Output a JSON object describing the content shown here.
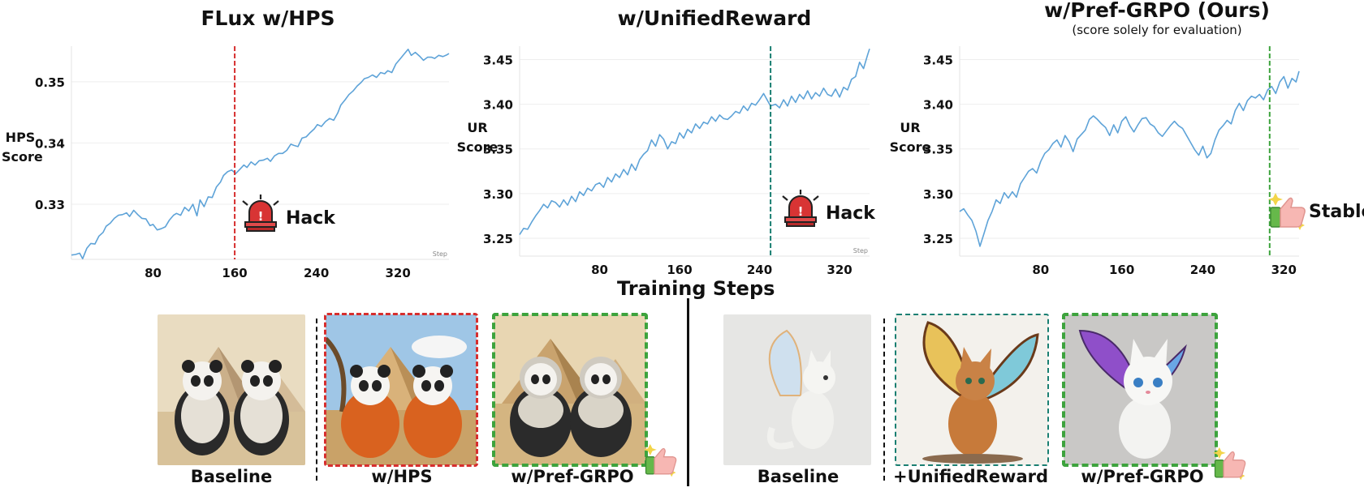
{
  "titles": {
    "left": "FLux w/HPS",
    "middle": "w/UnifiedReward",
    "right": "w/Pref-GRPO",
    "right_bold": "(Ours)",
    "right_sub": "(score solely for evaluation)"
  },
  "xlabel": "Training Steps",
  "annotations": {
    "hack": "Hack",
    "stable": "Stable"
  },
  "captions": {
    "left_baseline": "Baseline",
    "left_hps": "w/HPS",
    "left_pref": "w/Pref-GRPO",
    "right_baseline": "Baseline",
    "right_unified": "+UnifiedReward",
    "right_pref": "w/Pref-GRPO"
  },
  "colors": {
    "line": "#5ea3d8",
    "hack_red": "#d62e2e",
    "hack_teal": "#1a7f72",
    "stable_green": "#3da33d"
  },
  "icons": [
    "alarm-siren-icon",
    "thumbs-up-icon"
  ],
  "chart_data": [
    {
      "type": "line",
      "ylabel": "HPS Score",
      "ylabel_lines": [
        "HPS",
        "Score"
      ],
      "xlim": [
        0,
        370
      ],
      "ylim": [
        0.321,
        0.3558
      ],
      "xticks": [
        80,
        160,
        240,
        320
      ],
      "yticks": [
        0.33,
        0.34,
        0.35
      ],
      "ytick_labels": [
        "0.33",
        "0.34",
        "0.35"
      ],
      "corner_label": "Step",
      "marker_x": 160,
      "x": [
        0,
        4,
        8,
        11,
        15,
        19,
        23,
        27,
        31,
        34,
        38,
        42,
        46,
        50,
        54,
        57,
        61,
        65,
        69,
        73,
        77,
        80,
        84,
        88,
        92,
        96,
        100,
        103,
        107,
        111,
        115,
        119,
        123,
        126,
        130,
        134,
        138,
        142,
        146,
        149,
        153,
        157,
        161,
        165,
        169,
        172,
        176,
        180,
        184,
        188,
        192,
        195,
        199,
        203,
        207,
        211,
        215,
        218,
        222,
        226,
        230,
        234,
        238,
        241,
        245,
        249,
        253,
        257,
        261,
        264,
        268,
        272,
        276,
        280,
        284,
        287,
        291,
        295,
        299,
        303,
        307,
        310,
        314,
        318,
        322,
        326,
        330,
        333,
        337,
        341,
        345,
        349,
        353,
        356,
        360,
        364,
        368,
        370
      ],
      "y": [
        0.3217,
        0.3218,
        0.322,
        0.3211,
        0.3228,
        0.3236,
        0.3235,
        0.3248,
        0.3254,
        0.3264,
        0.3269,
        0.3277,
        0.3282,
        0.3283,
        0.3286,
        0.328,
        0.329,
        0.3283,
        0.3277,
        0.3276,
        0.3265,
        0.3267,
        0.3258,
        0.326,
        0.3263,
        0.3274,
        0.3282,
        0.3285,
        0.3282,
        0.3295,
        0.3289,
        0.33,
        0.3281,
        0.3307,
        0.3296,
        0.3312,
        0.3311,
        0.3328,
        0.3336,
        0.3347,
        0.3353,
        0.3356,
        0.335,
        0.3357,
        0.3364,
        0.336,
        0.3369,
        0.3364,
        0.3371,
        0.3372,
        0.3375,
        0.337,
        0.3379,
        0.3383,
        0.3383,
        0.3388,
        0.3398,
        0.3396,
        0.3394,
        0.3408,
        0.341,
        0.3417,
        0.3423,
        0.343,
        0.3427,
        0.3435,
        0.344,
        0.3437,
        0.3449,
        0.3462,
        0.347,
        0.3479,
        0.3485,
        0.3493,
        0.3499,
        0.3505,
        0.3507,
        0.3511,
        0.3507,
        0.3515,
        0.3513,
        0.3518,
        0.3515,
        0.3529,
        0.3537,
        0.3545,
        0.3553,
        0.3543,
        0.3548,
        0.3542,
        0.3535,
        0.354,
        0.354,
        0.3538,
        0.3543,
        0.3541,
        0.3544,
        0.3546
      ]
    },
    {
      "type": "line",
      "ylabel": "UR Score",
      "ylabel_lines": [
        "UR",
        "Score"
      ],
      "xlim": [
        0,
        350
      ],
      "ylim": [
        3.23,
        3.465
      ],
      "xticks": [
        80,
        160,
        240,
        320
      ],
      "yticks": [
        3.25,
        3.3,
        3.35,
        3.4,
        3.45
      ],
      "ytick_labels": [
        "3.25",
        "3.30",
        "3.35",
        "3.40",
        "3.45"
      ],
      "corner_label": "Step",
      "marker_x": 251,
      "x": [
        0,
        4,
        8,
        12,
        16,
        20,
        24,
        28,
        32,
        36,
        40,
        44,
        48,
        52,
        56,
        60,
        64,
        68,
        72,
        76,
        80,
        84,
        88,
        92,
        96,
        100,
        104,
        108,
        112,
        116,
        120,
        124,
        128,
        132,
        136,
        140,
        144,
        148,
        152,
        156,
        160,
        164,
        168,
        172,
        176,
        180,
        184,
        188,
        192,
        196,
        200,
        204,
        208,
        212,
        216,
        220,
        224,
        228,
        232,
        236,
        240,
        244,
        248,
        251,
        256,
        260,
        264,
        268,
        272,
        276,
        280,
        284,
        288,
        292,
        296,
        300,
        304,
        308,
        312,
        316,
        320,
        324,
        328,
        332,
        336,
        340,
        344,
        348,
        350
      ],
      "y": [
        3.254,
        3.261,
        3.26,
        3.268,
        3.275,
        3.281,
        3.288,
        3.284,
        3.292,
        3.29,
        3.285,
        3.293,
        3.287,
        3.297,
        3.291,
        3.302,
        3.298,
        3.306,
        3.303,
        3.31,
        3.312,
        3.307,
        3.318,
        3.313,
        3.322,
        3.318,
        3.327,
        3.321,
        3.333,
        3.326,
        3.338,
        3.344,
        3.348,
        3.36,
        3.353,
        3.366,
        3.361,
        3.35,
        3.358,
        3.356,
        3.368,
        3.362,
        3.372,
        3.368,
        3.378,
        3.373,
        3.38,
        3.378,
        3.386,
        3.381,
        3.388,
        3.384,
        3.383,
        3.387,
        3.392,
        3.39,
        3.398,
        3.393,
        3.401,
        3.399,
        3.405,
        3.412,
        3.404,
        3.398,
        3.4,
        3.396,
        3.405,
        3.398,
        3.409,
        3.402,
        3.411,
        3.406,
        3.415,
        3.406,
        3.413,
        3.409,
        3.418,
        3.411,
        3.409,
        3.417,
        3.408,
        3.419,
        3.416,
        3.428,
        3.431,
        3.447,
        3.44,
        3.455,
        3.462
      ]
    },
    {
      "type": "line",
      "ylabel": "UR Score",
      "ylabel_lines": [
        "UR",
        "Score"
      ],
      "xlim": [
        0,
        335
      ],
      "ylim": [
        3.23,
        3.465
      ],
      "xticks": [
        80,
        160,
        240,
        320
      ],
      "yticks": [
        3.25,
        3.3,
        3.35,
        3.4,
        3.45
      ],
      "ytick_labels": [
        "3.25",
        "3.30",
        "3.35",
        "3.40",
        "3.45"
      ],
      "corner_label": "",
      "marker_x": 306,
      "x": [
        0,
        4,
        8,
        12,
        16,
        20,
        24,
        28,
        32,
        36,
        40,
        44,
        48,
        52,
        56,
        60,
        64,
        68,
        72,
        76,
        80,
        84,
        88,
        92,
        96,
        100,
        104,
        108,
        112,
        116,
        120,
        124,
        128,
        132,
        136,
        140,
        144,
        148,
        152,
        156,
        160,
        164,
        168,
        172,
        176,
        180,
        184,
        188,
        192,
        196,
        200,
        204,
        208,
        212,
        216,
        220,
        224,
        228,
        232,
        236,
        240,
        244,
        248,
        252,
        256,
        260,
        264,
        268,
        272,
        276,
        280,
        284,
        288,
        292,
        296,
        300,
        304,
        308,
        312,
        316,
        320,
        324,
        328,
        332,
        335
      ],
      "y": [
        3.28,
        3.283,
        3.276,
        3.27,
        3.258,
        3.241,
        3.255,
        3.27,
        3.28,
        3.293,
        3.289,
        3.301,
        3.295,
        3.302,
        3.296,
        3.311,
        3.318,
        3.325,
        3.328,
        3.323,
        3.336,
        3.345,
        3.349,
        3.356,
        3.36,
        3.352,
        3.365,
        3.358,
        3.347,
        3.361,
        3.366,
        3.371,
        3.383,
        3.387,
        3.383,
        3.378,
        3.374,
        3.365,
        3.377,
        3.368,
        3.381,
        3.386,
        3.376,
        3.369,
        3.377,
        3.384,
        3.385,
        3.378,
        3.375,
        3.368,
        3.364,
        3.37,
        3.376,
        3.381,
        3.376,
        3.373,
        3.365,
        3.357,
        3.349,
        3.343,
        3.353,
        3.34,
        3.345,
        3.36,
        3.371,
        3.376,
        3.382,
        3.378,
        3.393,
        3.401,
        3.393,
        3.404,
        3.409,
        3.407,
        3.411,
        3.405,
        3.416,
        3.42,
        3.412,
        3.425,
        3.431,
        3.418,
        3.429,
        3.425,
        3.437
      ]
    }
  ]
}
